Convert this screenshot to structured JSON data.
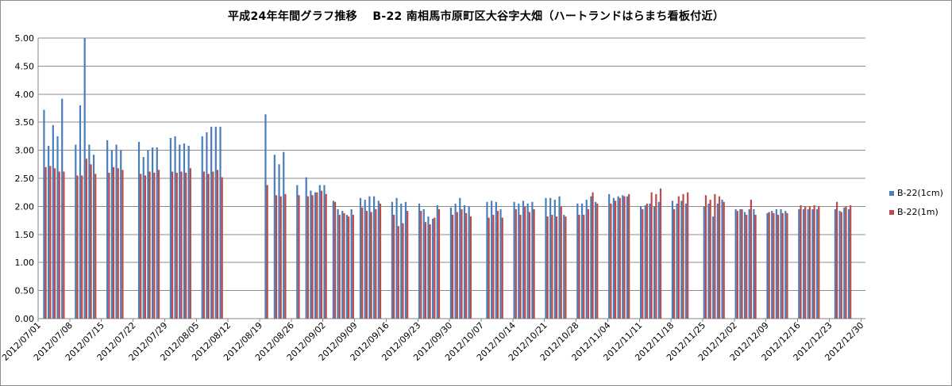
{
  "chart_data": {
    "type": "bar",
    "title": "平成24年年間グラフ推移　 B-22 南相馬市原町区大谷字大畑（ハートランドはらまち看板付近）",
    "xlabel": "",
    "ylabel": "",
    "ylim": [
      0,
      5
    ],
    "yticks": [
      "0.00",
      "0.50",
      "1.00",
      "1.50",
      "2.00",
      "2.50",
      "3.00",
      "3.50",
      "4.00",
      "4.50",
      "5.00"
    ],
    "grid": true,
    "legend_position": "right",
    "x_start": "2012/07/01",
    "x_end": "2012/12/31",
    "x_tick_labels": [
      "2012/07/01",
      "2012/07/08",
      "2012/07/15",
      "2012/07/22",
      "2012/07/29",
      "2012/08/05",
      "2012/08/12",
      "2012/08/19",
      "2012/08/26",
      "2012/09/02",
      "2012/09/09",
      "2012/09/16",
      "2012/09/23",
      "2012/09/30",
      "2012/10/07",
      "2012/10/14",
      "2012/10/21",
      "2012/10/28",
      "2012/11/04",
      "2012/11/11",
      "2012/11/18",
      "2012/11/25",
      "2012/12/02",
      "2012/12/09",
      "2012/12/16",
      "2012/12/23",
      "2012/12/30"
    ],
    "series": [
      {
        "name": "B-22(1cm)",
        "color": "#4a7ebb",
        "points": [
          [
            "2012/07/02",
            3.72
          ],
          [
            "2012/07/03",
            3.08
          ],
          [
            "2012/07/04",
            3.45
          ],
          [
            "2012/07/05",
            3.25
          ],
          [
            "2012/07/06",
            3.92
          ],
          [
            "2012/07/09",
            3.1
          ],
          [
            "2012/07/10",
            3.8
          ],
          [
            "2012/07/11",
            5.0
          ],
          [
            "2012/07/12",
            3.1
          ],
          [
            "2012/07/13",
            2.92
          ],
          [
            "2012/07/16",
            3.18
          ],
          [
            "2012/07/17",
            3.0
          ],
          [
            "2012/07/18",
            3.1
          ],
          [
            "2012/07/19",
            3.0
          ],
          [
            "2012/07/23",
            3.15
          ],
          [
            "2012/07/24",
            2.88
          ],
          [
            "2012/07/25",
            3.0
          ],
          [
            "2012/07/26",
            3.05
          ],
          [
            "2012/07/27",
            3.05
          ],
          [
            "2012/07/30",
            3.22
          ],
          [
            "2012/07/31",
            3.25
          ],
          [
            "2012/08/01",
            3.1
          ],
          [
            "2012/08/02",
            3.12
          ],
          [
            "2012/08/03",
            3.08
          ],
          [
            "2012/08/06",
            3.25
          ],
          [
            "2012/08/07",
            3.32
          ],
          [
            "2012/08/08",
            3.42
          ],
          [
            "2012/08/09",
            3.42
          ],
          [
            "2012/08/10",
            3.42
          ],
          [
            "2012/08/20",
            3.64
          ],
          [
            "2012/08/22",
            2.92
          ],
          [
            "2012/08/23",
            2.75
          ],
          [
            "2012/08/24",
            2.97
          ],
          [
            "2012/08/27",
            2.38
          ],
          [
            "2012/08/29",
            2.52
          ],
          [
            "2012/08/30",
            2.28
          ],
          [
            "2012/08/31",
            2.25
          ],
          [
            "2012/09/01",
            2.38
          ],
          [
            "2012/09/02",
            2.38
          ],
          [
            "2012/09/04",
            2.1
          ],
          [
            "2012/09/05",
            1.95
          ],
          [
            "2012/09/06",
            1.92
          ],
          [
            "2012/09/07",
            1.85
          ],
          [
            "2012/09/08",
            1.95
          ],
          [
            "2012/09/10",
            2.15
          ],
          [
            "2012/09/11",
            2.12
          ],
          [
            "2012/09/12",
            2.18
          ],
          [
            "2012/09/13",
            2.18
          ],
          [
            "2012/09/14",
            2.1
          ],
          [
            "2012/09/17",
            2.08
          ],
          [
            "2012/09/18",
            2.15
          ],
          [
            "2012/09/19",
            2.05
          ],
          [
            "2012/09/20",
            2.08
          ],
          [
            "2012/09/23",
            2.05
          ],
          [
            "2012/09/24",
            1.95
          ],
          [
            "2012/09/25",
            1.82
          ],
          [
            "2012/09/26",
            1.78
          ],
          [
            "2012/09/27",
            2.02
          ],
          [
            "2012/09/30",
            1.98
          ],
          [
            "2012/10/01",
            2.05
          ],
          [
            "2012/10/02",
            2.15
          ],
          [
            "2012/10/03",
            2.02
          ],
          [
            "2012/10/04",
            2.0
          ],
          [
            "2012/10/08",
            2.08
          ],
          [
            "2012/10/09",
            2.1
          ],
          [
            "2012/10/10",
            2.08
          ],
          [
            "2012/10/11",
            1.95
          ],
          [
            "2012/10/14",
            2.08
          ],
          [
            "2012/10/15",
            2.05
          ],
          [
            "2012/10/16",
            2.1
          ],
          [
            "2012/10/17",
            2.05
          ],
          [
            "2012/10/18",
            2.08
          ],
          [
            "2012/10/21",
            2.15
          ],
          [
            "2012/10/22",
            2.15
          ],
          [
            "2012/10/23",
            2.12
          ],
          [
            "2012/10/24",
            2.18
          ],
          [
            "2012/10/25",
            1.85
          ],
          [
            "2012/10/28",
            2.05
          ],
          [
            "2012/10/29",
            2.05
          ],
          [
            "2012/10/30",
            2.12
          ],
          [
            "2012/10/31",
            2.18
          ],
          [
            "2012/11/01",
            2.08
          ],
          [
            "2012/11/04",
            2.22
          ],
          [
            "2012/11/05",
            2.15
          ],
          [
            "2012/11/06",
            2.18
          ],
          [
            "2012/11/07",
            2.2
          ],
          [
            "2012/11/08",
            2.18
          ],
          [
            "2012/11/11",
            2.0
          ],
          [
            "2012/11/12",
            2.02
          ],
          [
            "2012/11/13",
            2.05
          ],
          [
            "2012/11/14",
            2.0
          ],
          [
            "2012/11/15",
            2.08
          ],
          [
            "2012/11/18",
            2.1
          ],
          [
            "2012/11/19",
            2.05
          ],
          [
            "2012/11/20",
            2.1
          ],
          [
            "2012/11/21",
            2.05
          ],
          [
            "2012/11/25",
            2.0
          ],
          [
            "2012/11/26",
            2.05
          ],
          [
            "2012/11/27",
            1.82
          ],
          [
            "2012/11/28",
            2.05
          ],
          [
            "2012/11/29",
            2.12
          ],
          [
            "2012/12/02",
            1.95
          ],
          [
            "2012/12/03",
            1.95
          ],
          [
            "2012/12/04",
            1.9
          ],
          [
            "2012/12/05",
            1.95
          ],
          [
            "2012/12/06",
            1.95
          ],
          [
            "2012/12/09",
            1.88
          ],
          [
            "2012/12/10",
            1.92
          ],
          [
            "2012/12/11",
            1.95
          ],
          [
            "2012/12/12",
            1.95
          ],
          [
            "2012/12/13",
            1.92
          ],
          [
            "2012/12/16",
            1.95
          ],
          [
            "2012/12/17",
            1.95
          ],
          [
            "2012/12/18",
            1.95
          ],
          [
            "2012/12/19",
            1.95
          ],
          [
            "2012/12/20",
            1.95
          ],
          [
            "2012/12/24",
            1.95
          ],
          [
            "2012/12/25",
            1.92
          ],
          [
            "2012/12/26",
            1.98
          ],
          [
            "2012/12/27",
            1.95
          ]
        ]
      },
      {
        "name": "B-22(1m)",
        "color": "#be4b48",
        "points": [
          [
            "2012/07/02",
            2.7
          ],
          [
            "2012/07/03",
            2.72
          ],
          [
            "2012/07/04",
            2.68
          ],
          [
            "2012/07/05",
            2.62
          ],
          [
            "2012/07/06",
            2.62
          ],
          [
            "2012/07/09",
            2.55
          ],
          [
            "2012/07/10",
            2.55
          ],
          [
            "2012/07/11",
            2.85
          ],
          [
            "2012/07/12",
            2.75
          ],
          [
            "2012/07/13",
            2.58
          ],
          [
            "2012/07/16",
            2.6
          ],
          [
            "2012/07/17",
            2.7
          ],
          [
            "2012/07/18",
            2.68
          ],
          [
            "2012/07/19",
            2.65
          ],
          [
            "2012/07/23",
            2.58
          ],
          [
            "2012/07/24",
            2.55
          ],
          [
            "2012/07/25",
            2.62
          ],
          [
            "2012/07/26",
            2.6
          ],
          [
            "2012/07/27",
            2.65
          ],
          [
            "2012/07/30",
            2.62
          ],
          [
            "2012/07/31",
            2.6
          ],
          [
            "2012/08/01",
            2.62
          ],
          [
            "2012/08/02",
            2.6
          ],
          [
            "2012/08/03",
            2.68
          ],
          [
            "2012/08/06",
            2.62
          ],
          [
            "2012/08/07",
            2.58
          ],
          [
            "2012/08/08",
            2.62
          ],
          [
            "2012/08/09",
            2.65
          ],
          [
            "2012/08/10",
            2.52
          ],
          [
            "2012/08/20",
            2.38
          ],
          [
            "2012/08/22",
            2.2
          ],
          [
            "2012/08/23",
            2.18
          ],
          [
            "2012/08/24",
            2.22
          ],
          [
            "2012/08/27",
            2.2
          ],
          [
            "2012/08/29",
            2.18
          ],
          [
            "2012/08/30",
            2.2
          ],
          [
            "2012/08/31",
            2.25
          ],
          [
            "2012/09/01",
            2.28
          ],
          [
            "2012/09/02",
            2.22
          ],
          [
            "2012/09/04",
            2.08
          ],
          [
            "2012/09/05",
            1.85
          ],
          [
            "2012/09/06",
            1.88
          ],
          [
            "2012/09/07",
            1.82
          ],
          [
            "2012/09/08",
            1.85
          ],
          [
            "2012/09/10",
            1.98
          ],
          [
            "2012/09/11",
            1.92
          ],
          [
            "2012/09/12",
            1.9
          ],
          [
            "2012/09/13",
            1.95
          ],
          [
            "2012/09/14",
            2.05
          ],
          [
            "2012/09/17",
            1.85
          ],
          [
            "2012/09/18",
            1.65
          ],
          [
            "2012/09/19",
            1.7
          ],
          [
            "2012/09/20",
            1.92
          ],
          [
            "2012/09/23",
            1.92
          ],
          [
            "2012/09/24",
            1.72
          ],
          [
            "2012/09/25",
            1.68
          ],
          [
            "2012/09/26",
            1.8
          ],
          [
            "2012/09/27",
            1.95
          ],
          [
            "2012/09/30",
            1.85
          ],
          [
            "2012/10/01",
            1.9
          ],
          [
            "2012/10/02",
            1.95
          ],
          [
            "2012/10/03",
            1.88
          ],
          [
            "2012/10/04",
            1.82
          ],
          [
            "2012/10/08",
            1.8
          ],
          [
            "2012/10/09",
            1.85
          ],
          [
            "2012/10/10",
            1.92
          ],
          [
            "2012/10/11",
            1.8
          ],
          [
            "2012/10/14",
            1.95
          ],
          [
            "2012/10/15",
            1.85
          ],
          [
            "2012/10/16",
            2.0
          ],
          [
            "2012/10/17",
            1.9
          ],
          [
            "2012/10/18",
            1.95
          ],
          [
            "2012/10/21",
            1.82
          ],
          [
            "2012/10/22",
            1.85
          ],
          [
            "2012/10/23",
            1.82
          ],
          [
            "2012/10/24",
            2.0
          ],
          [
            "2012/10/25",
            1.82
          ],
          [
            "2012/10/28",
            1.85
          ],
          [
            "2012/10/29",
            1.85
          ],
          [
            "2012/10/30",
            1.95
          ],
          [
            "2012/10/31",
            2.25
          ],
          [
            "2012/11/01",
            2.05
          ],
          [
            "2012/11/04",
            2.05
          ],
          [
            "2012/11/05",
            2.1
          ],
          [
            "2012/11/06",
            2.15
          ],
          [
            "2012/11/07",
            2.18
          ],
          [
            "2012/11/08",
            2.22
          ],
          [
            "2012/11/11",
            1.95
          ],
          [
            "2012/11/12",
            2.05
          ],
          [
            "2012/11/13",
            2.25
          ],
          [
            "2012/11/14",
            2.22
          ],
          [
            "2012/11/15",
            2.32
          ],
          [
            "2012/11/18",
            1.95
          ],
          [
            "2012/11/19",
            2.18
          ],
          [
            "2012/11/20",
            2.22
          ],
          [
            "2012/11/21",
            2.25
          ],
          [
            "2012/11/25",
            2.2
          ],
          [
            "2012/11/26",
            2.12
          ],
          [
            "2012/11/27",
            2.22
          ],
          [
            "2012/11/28",
            2.18
          ],
          [
            "2012/11/29",
            2.08
          ],
          [
            "2012/12/02",
            1.92
          ],
          [
            "2012/12/03",
            1.95
          ],
          [
            "2012/12/04",
            1.85
          ],
          [
            "2012/12/05",
            2.12
          ],
          [
            "2012/12/06",
            1.85
          ],
          [
            "2012/12/09",
            1.9
          ],
          [
            "2012/12/10",
            1.88
          ],
          [
            "2012/12/11",
            1.85
          ],
          [
            "2012/12/12",
            1.88
          ],
          [
            "2012/12/13",
            1.88
          ],
          [
            "2012/12/16",
            2.02
          ],
          [
            "2012/12/17",
            2.0
          ],
          [
            "2012/12/18",
            2.0
          ],
          [
            "2012/12/19",
            2.02
          ],
          [
            "2012/12/20",
            2.0
          ],
          [
            "2012/12/24",
            2.08
          ],
          [
            "2012/12/25",
            1.9
          ],
          [
            "2012/12/26",
            2.0
          ],
          [
            "2012/12/27",
            2.02
          ]
        ]
      }
    ]
  }
}
